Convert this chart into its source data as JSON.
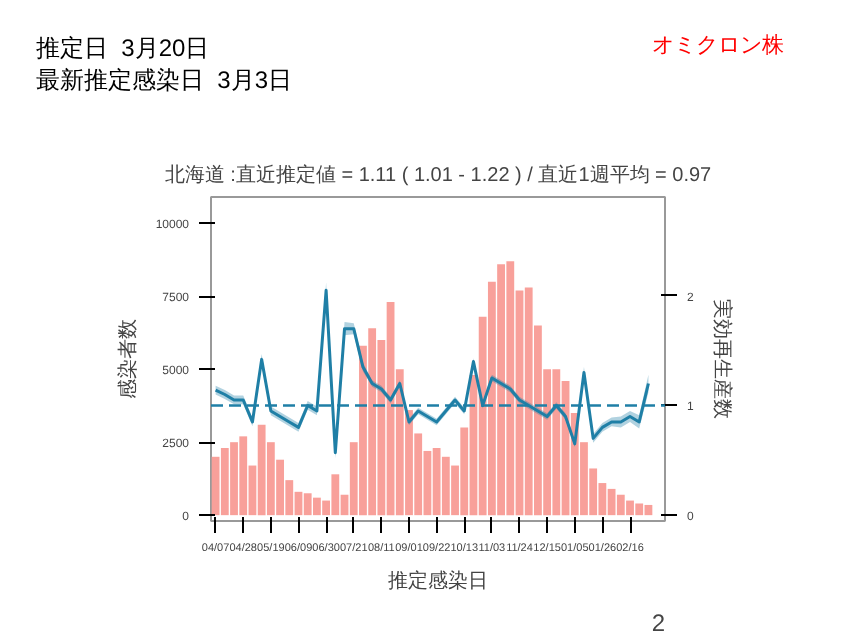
{
  "chart_data": {
    "type": "bar",
    "title": "北海道 :直近推定値 = 1.11 ( 1.01 - 1.22 ) / 直近1週平均 = 0.97",
    "xlabel": "推定感染日",
    "ylabel": "感染者数",
    "y2label": "実効再生産数",
    "annotations": [
      "推定日  3月20日",
      "最新推定感染日  3月3日",
      "オミクロン株",
      "2"
    ],
    "categories": [
      "04/07",
      null,
      null,
      "04/28",
      null,
      null,
      "05/19",
      null,
      null,
      "06/09",
      null,
      null,
      "06/30",
      null,
      null,
      "07/21",
      null,
      null,
      "08/11",
      null,
      null,
      "09/01",
      null,
      null,
      "09/22",
      null,
      null,
      "10/13",
      null,
      null,
      "11/03",
      null,
      null,
      "11/24",
      null,
      null,
      "12/15",
      null,
      null,
      "01/05",
      null,
      null,
      "01/26",
      null,
      null,
      "02/16",
      null,
      null
    ],
    "ylim": [
      -200,
      10900
    ],
    "yticks": [
      0,
      2500,
      5000,
      7500,
      10000
    ],
    "y2lim": [
      -0.053,
      2.9
    ],
    "y2ticks": [
      0,
      1,
      2
    ],
    "grid": false,
    "series": [
      {
        "color": "#f8a09a",
        "values": [
          2000,
          2300,
          2500,
          2700,
          1700,
          3100,
          2500,
          1900,
          1200,
          800,
          750,
          600,
          500,
          1400,
          700,
          2500,
          5800,
          6400,
          6000,
          7300,
          5000,
          3600,
          2800,
          2200,
          2300,
          2000,
          1700,
          3000,
          4800,
          6800,
          8000,
          8600,
          8700,
          7700,
          7800,
          6500,
          5000,
          5000,
          4600,
          3500,
          2500,
          1600,
          1100,
          900,
          700,
          500,
          400,
          350
        ]
      },
      {
        "type": "line",
        "axis": "y2",
        "color": "#1f7fa6",
        "line_style": "solid",
        "values": [
          1.14,
          1.1,
          1.05,
          1.05,
          0.85,
          1.42,
          0.95,
          0.9,
          0.85,
          0.8,
          1.0,
          0.95,
          2.05,
          0.57,
          1.7,
          1.7,
          1.35,
          1.2,
          1.15,
          1.05,
          1.2,
          0.85,
          0.95,
          0.9,
          0.85,
          0.95,
          1.05,
          0.95,
          1.4,
          1.0,
          1.25,
          1.2,
          1.15,
          1.05,
          1.0,
          0.95,
          0.9,
          1.0,
          0.9,
          0.65,
          1.3,
          0.7,
          0.8,
          0.85,
          0.85,
          0.9,
          0.85,
          1.2
        ],
        "lower": [
          1.1,
          1.06,
          1.01,
          1.01,
          0.81,
          1.37,
          0.91,
          0.86,
          0.81,
          0.76,
          0.96,
          0.91,
          1.98,
          0.52,
          1.64,
          1.65,
          1.31,
          1.17,
          1.12,
          1.02,
          1.17,
          0.82,
          0.92,
          0.87,
          0.82,
          0.92,
          1.02,
          0.92,
          1.37,
          0.97,
          1.22,
          1.17,
          1.12,
          1.02,
          0.97,
          0.92,
          0.87,
          0.97,
          0.87,
          0.62,
          1.25,
          0.66,
          0.76,
          0.81,
          0.8,
          0.85,
          0.79,
          1.12
        ],
        "upper": [
          1.18,
          1.14,
          1.09,
          1.09,
          0.89,
          1.47,
          0.99,
          0.94,
          0.89,
          0.84,
          1.04,
          0.99,
          2.12,
          0.62,
          1.76,
          1.75,
          1.39,
          1.23,
          1.18,
          1.08,
          1.23,
          0.88,
          0.98,
          0.93,
          0.88,
          0.98,
          1.08,
          0.98,
          1.43,
          1.03,
          1.28,
          1.23,
          1.18,
          1.08,
          1.03,
          0.98,
          0.93,
          1.03,
          0.93,
          0.68,
          1.35,
          0.74,
          0.84,
          0.89,
          0.9,
          0.95,
          0.91,
          1.28
        ]
      }
    ],
    "ref_lines": [
      {
        "axis": "y2",
        "value": 1,
        "color": "#1f7fa6",
        "line_style": "dashed"
      }
    ]
  }
}
